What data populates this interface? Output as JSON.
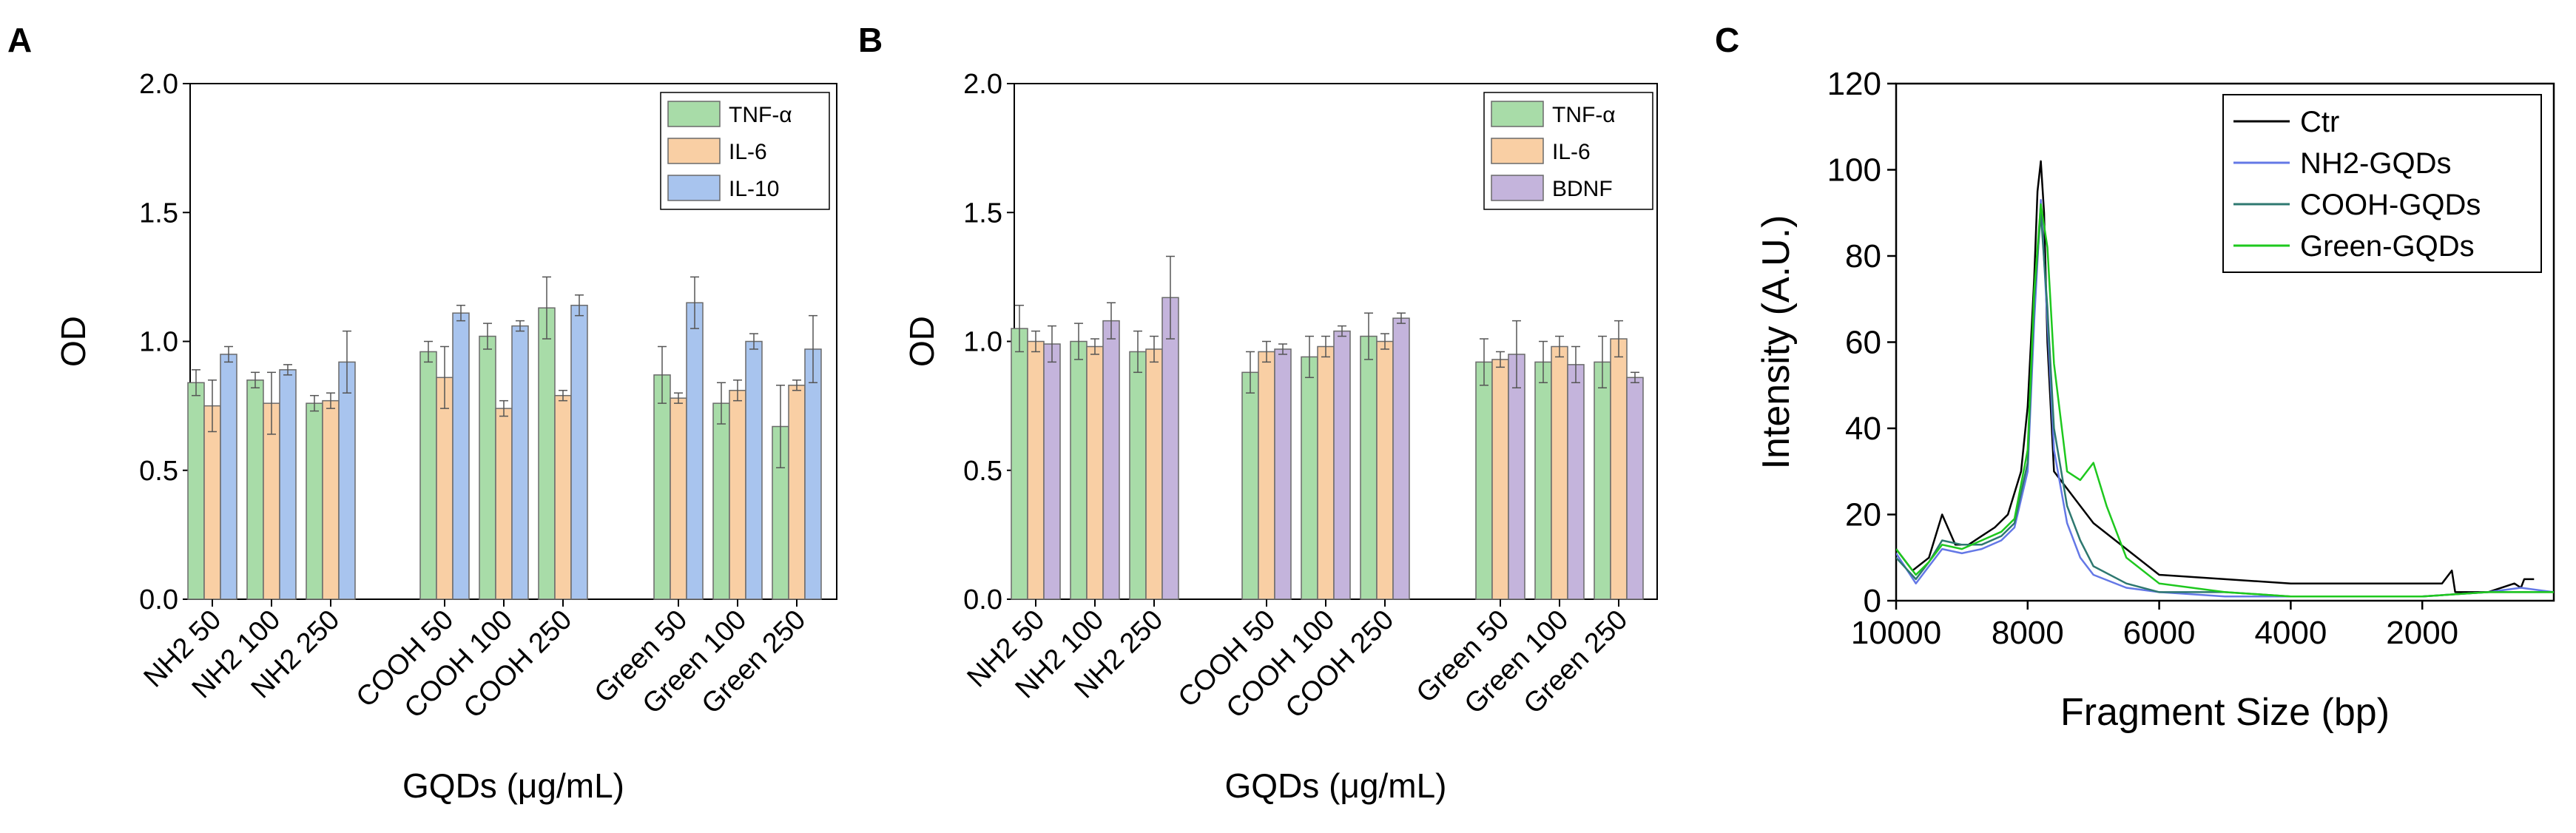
{
  "chart_data": [
    {
      "panel": "A",
      "type": "bar",
      "ylabel": "OD",
      "xlabel": "GQDs (μg/mL)",
      "ylim": [
        0,
        2.0
      ],
      "yticks": [
        "0.0",
        "0.5",
        "1.0",
        "1.5",
        "2.0"
      ],
      "legend_position": "top-right",
      "groups": [
        [
          "NH2 50",
          "NH2 100",
          "NH2 250"
        ],
        [
          "COOH 50",
          "COOH 100",
          "COOH 250"
        ],
        [
          "Green 50",
          "Green 100",
          "Green 250"
        ]
      ],
      "categories": [
        "NH2 50",
        "NH2 100",
        "NH2 250",
        "COOH 50",
        "COOH 100",
        "COOH 250",
        "Green 50",
        "Green 100",
        "Green 250"
      ],
      "series": [
        {
          "name": "TNF-α",
          "color": "#a8dca8",
          "values": [
            0.84,
            0.85,
            0.76,
            0.96,
            1.02,
            1.13,
            0.87,
            0.76,
            0.67
          ],
          "errors": [
            0.05,
            0.03,
            0.03,
            0.04,
            0.05,
            0.12,
            0.11,
            0.08,
            0.16
          ]
        },
        {
          "name": "IL-6",
          "color": "#f9cfa4",
          "values": [
            0.75,
            0.76,
            0.77,
            0.86,
            0.74,
            0.79,
            0.78,
            0.81,
            0.83
          ],
          "errors": [
            0.1,
            0.12,
            0.03,
            0.12,
            0.03,
            0.02,
            0.02,
            0.04,
            0.02
          ]
        },
        {
          "name": "IL-10",
          "color": "#a8c4ee",
          "values": [
            0.95,
            0.89,
            0.92,
            1.11,
            1.06,
            1.14,
            1.15,
            1.0,
            0.97
          ],
          "errors": [
            0.03,
            0.02,
            0.12,
            0.03,
            0.02,
            0.04,
            0.1,
            0.03,
            0.13
          ]
        }
      ]
    },
    {
      "panel": "B",
      "type": "bar",
      "ylabel": "OD",
      "xlabel": "GQDs (μg/mL)",
      "ylim": [
        0,
        2.0
      ],
      "yticks": [
        "0.0",
        "0.5",
        "1.0",
        "1.5",
        "2.0"
      ],
      "legend_position": "top-right",
      "groups": [
        [
          "NH2 50",
          "NH2 100",
          "NH2 250"
        ],
        [
          "COOH 50",
          "COOH 100",
          "COOH 250"
        ],
        [
          "Green 50",
          "Green 100",
          "Green 250"
        ]
      ],
      "categories": [
        "NH2 50",
        "NH2 100",
        "NH2 250",
        "COOH 50",
        "COOH 100",
        "COOH 250",
        "Green 50",
        "Green 100",
        "Green 250"
      ],
      "series": [
        {
          "name": "TNF-α",
          "color": "#a8dca8",
          "values": [
            1.05,
            1.0,
            0.96,
            0.88,
            0.94,
            1.02,
            0.92,
            0.92,
            0.92
          ],
          "errors": [
            0.09,
            0.07,
            0.08,
            0.08,
            0.08,
            0.09,
            0.09,
            0.08,
            0.1
          ]
        },
        {
          "name": "IL-6",
          "color": "#f9cfa4",
          "values": [
            1.0,
            0.98,
            0.97,
            0.96,
            0.98,
            1.0,
            0.93,
            0.98,
            1.01
          ],
          "errors": [
            0.04,
            0.03,
            0.05,
            0.04,
            0.04,
            0.03,
            0.03,
            0.04,
            0.07
          ]
        },
        {
          "name": "BDNF",
          "color": "#c4b4dc",
          "values": [
            0.99,
            1.08,
            1.17,
            0.97,
            1.04,
            1.09,
            0.95,
            0.91,
            0.86
          ],
          "errors": [
            0.07,
            0.07,
            0.16,
            0.02,
            0.02,
            0.02,
            0.13,
            0.07,
            0.02
          ]
        }
      ]
    },
    {
      "panel": "C",
      "type": "line",
      "ylabel": "Intensity (A.U.)",
      "xlabel": "Fragment Size (bp)",
      "xlim": [
        10000,
        0
      ],
      "ylim": [
        0,
        120
      ],
      "xticks": [
        "10000",
        "8000",
        "6000",
        "4000",
        "2000"
      ],
      "yticks": [
        "0",
        "20",
        "40",
        "60",
        "80",
        "100",
        "120"
      ],
      "legend_position": "top-right",
      "series": [
        {
          "name": "Ctr",
          "color": "#000000",
          "x": [
            10000,
            9750,
            9500,
            9300,
            9100,
            8900,
            8700,
            8500,
            8300,
            8100,
            8000,
            7900,
            7850,
            7800,
            7750,
            7700,
            7600,
            7400,
            7200,
            7000,
            6500,
            6000,
            5000,
            4000,
            3000,
            2000,
            1700,
            1550,
            1500,
            1000,
            600,
            500,
            450,
            300
          ],
          "y": [
            12,
            7,
            10,
            20,
            13,
            13,
            15,
            17,
            20,
            30,
            45,
            75,
            95,
            102,
            90,
            60,
            30,
            26,
            22,
            18,
            12,
            6,
            5,
            4,
            4,
            4,
            4,
            7,
            2,
            2,
            4,
            3,
            5,
            5
          ]
        },
        {
          "name": "NH2-GQDs",
          "color": "#6478e6",
          "x": [
            10000,
            9700,
            9500,
            9300,
            9000,
            8700,
            8400,
            8200,
            8000,
            7900,
            7800,
            7700,
            7600,
            7400,
            7200,
            7000,
            6500,
            6000,
            5000,
            4000,
            3000,
            2000,
            1000,
            500,
            0
          ],
          "y": [
            11,
            4,
            8,
            12,
            11,
            12,
            14,
            17,
            30,
            65,
            93,
            65,
            35,
            18,
            10,
            6,
            3,
            2,
            1,
            1,
            1,
            1,
            2,
            3,
            2
          ]
        },
        {
          "name": "COOH-GQDs",
          "color": "#2e7870",
          "x": [
            10000,
            9700,
            9500,
            9300,
            9000,
            8700,
            8400,
            8200,
            8000,
            7900,
            7800,
            7700,
            7600,
            7400,
            7200,
            7000,
            6500,
            6000,
            5000,
            4000,
            3000,
            2000,
            1000,
            500,
            0
          ],
          "y": [
            10,
            5,
            9,
            14,
            13,
            13,
            15,
            18,
            32,
            70,
            90,
            68,
            40,
            22,
            14,
            8,
            4,
            2,
            2,
            1,
            1,
            1,
            2,
            2,
            2
          ]
        },
        {
          "name": "Green-GQDs",
          "color": "#1ec81e",
          "x": [
            10000,
            9700,
            9500,
            9300,
            9000,
            8700,
            8400,
            8200,
            8000,
            7900,
            7800,
            7700,
            7600,
            7400,
            7200,
            7000,
            6800,
            6500,
            6000,
            5000,
            4000,
            3000,
            2000,
            1000,
            0
          ],
          "y": [
            12,
            6,
            9,
            13,
            12,
            14,
            16,
            19,
            35,
            72,
            92,
            82,
            55,
            30,
            28,
            32,
            22,
            10,
            4,
            2,
            1,
            1,
            1,
            2,
            2
          ]
        }
      ]
    }
  ],
  "panels": [
    {
      "label": "A"
    },
    {
      "label": "B"
    },
    {
      "label": "C"
    }
  ]
}
